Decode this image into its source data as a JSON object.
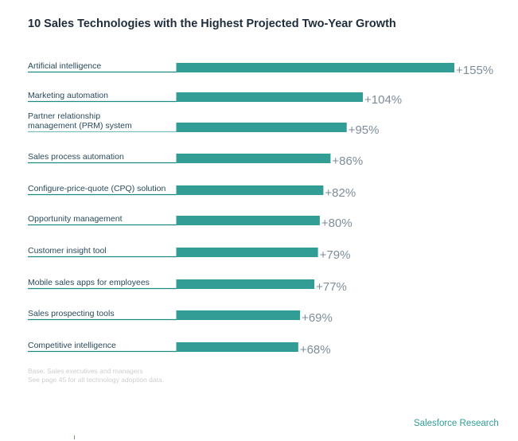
{
  "chart_data": {
    "type": "bar",
    "orientation": "horizontal",
    "title": "10 Sales Technologies with the Highest Projected Two-Year Growth",
    "categories": [
      "Artificial intelligence",
      "Marketing automation",
      "Partner relationship management (PRM) system",
      "Sales process automation",
      "Configure-price-quote (CPQ) solution",
      "Opportunity management",
      "Customer insight tool",
      "Mobile sales apps for employees",
      "Sales prospecting tools",
      "Competitive intelligence"
    ],
    "category_lines": [
      [
        "Artificial intelligence"
      ],
      [
        "Marketing automation"
      ],
      [
        "Partner relationship",
        "management (PRM) system"
      ],
      [
        "Sales process automation"
      ],
      [
        "Configure-price-quote (CPQ) solution"
      ],
      [
        "Opportunity management"
      ],
      [
        "Customer insight tool"
      ],
      [
        "Mobile sales apps for employees"
      ],
      [
        "Sales prospecting tools"
      ],
      [
        "Competitive intelligence"
      ]
    ],
    "values": [
      155,
      104,
      95,
      86,
      82,
      80,
      79,
      77,
      69,
      68
    ],
    "data_labels": [
      "+155%",
      "+104%",
      "+95%",
      "+86%",
      "+82%",
      "+80%",
      "+79%",
      "+77%",
      "+69%",
      "+68%"
    ],
    "unit": "%",
    "xlabel": "",
    "ylabel": "",
    "xlim": [
      0,
      155
    ],
    "grid": false,
    "legend": "none",
    "colors": {
      "bar": "#329d94",
      "underline": "#1f8a80",
      "label": "#2a4a5a",
      "value": "#7d8e99"
    }
  },
  "footnote": {
    "line1": "Base: Sales executives and managers",
    "line2": "See page 45 for all technology adoption data."
  },
  "brand": "Salesforce Research"
}
